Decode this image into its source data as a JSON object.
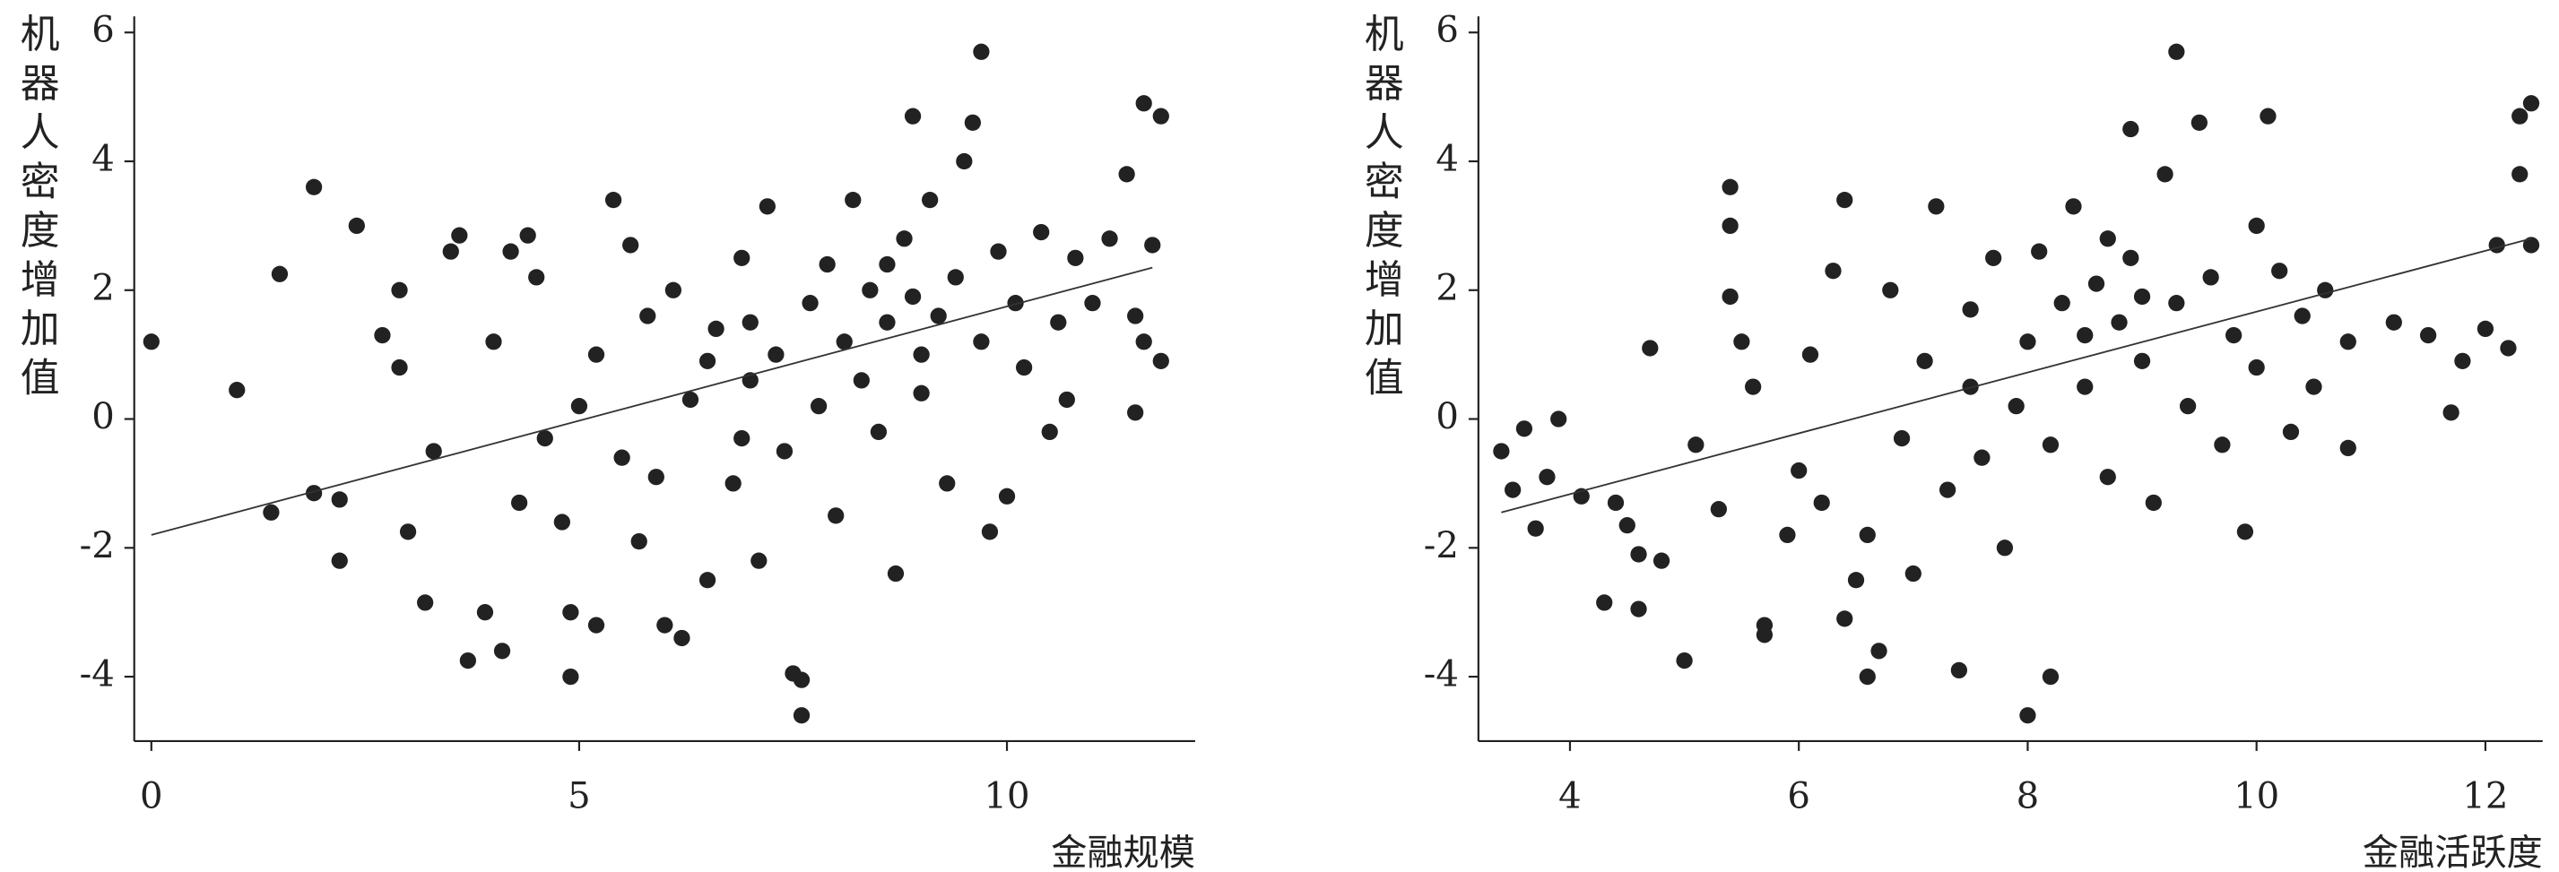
{
  "chart_data": [
    {
      "type": "scatter",
      "color": "#222222",
      "xlabel": "金融规模",
      "ylabel": "机器人密度增加值",
      "xlim": [
        -0.2,
        12.2
      ],
      "ylim": [
        -5,
        6.25
      ],
      "xticks": [
        0,
        5,
        10
      ],
      "yticks": [
        -4,
        -2,
        0,
        2,
        4,
        6
      ],
      "x": [
        0,
        1,
        1.5,
        1.9,
        1.9,
        1.4,
        2.2,
        2.4,
        2.2,
        2.7,
        2.9,
        2.9,
        3.0,
        3.2,
        3.3,
        3.5,
        3.6,
        3.7,
        3.9,
        4.1,
        4.0,
        4.2,
        4.4,
        4.5,
        4.3,
        4.6,
        4.8,
        4.9,
        4.9,
        5.0,
        5.2,
        5.2,
        5.4,
        5.5,
        5.6,
        5.7,
        5.8,
        6.0,
        6.1,
        6.2,
        6.3,
        6.5,
        6.6,
        6.8,
        6.9,
        7.0,
        7.1,
        7.2,
        7.3,
        7.4,
        7.5,
        7.6,
        7.6,
        7.7,
        7.8,
        7.9,
        8.0,
        8.1,
        8.2,
        8.3,
        8.4,
        8.5,
        8.6,
        8.7,
        8.8,
        8.9,
        8.9,
        9.0,
        9.1,
        9.2,
        9.3,
        9.4,
        9.5,
        9.6,
        9.7,
        9.7,
        9.8,
        9.9,
        10.0,
        10.1,
        10.2,
        10.4,
        10.5,
        10.6,
        10.7,
        10.8,
        11.0,
        11.2,
        11.4,
        11.5,
        11.5,
        11.6,
        11.6,
        11.7,
        11.8,
        11.8,
        6.5,
        7.0,
        8.6,
        9.0,
        5.9,
        6.9
      ],
      "y": [
        1.2,
        0.45,
        2.25,
        3.6,
        -1.15,
        -1.45,
        -2.2,
        3.0,
        -1.25,
        1.3,
        2.0,
        0.8,
        -1.75,
        -2.85,
        -0.5,
        2.6,
        2.85,
        -3.75,
        -3.0,
        -3.6,
        1.2,
        2.6,
        2.85,
        2.2,
        -1.3,
        -0.3,
        -1.6,
        -4.0,
        -3.0,
        0.2,
        -3.2,
        1.0,
        3.4,
        -0.6,
        2.7,
        -1.9,
        1.6,
        -3.2,
        2.0,
        -3.4,
        0.3,
        -2.5,
        1.4,
        -1.0,
        2.5,
        0.6,
        -2.2,
        3.3,
        1.0,
        -0.5,
        -3.95,
        -4.6,
        -4.05,
        1.8,
        0.2,
        2.4,
        -1.5,
        1.2,
        3.4,
        0.6,
        2.0,
        -0.2,
        1.5,
        -2.4,
        2.8,
        4.7,
        1.9,
        0.4,
        3.4,
        1.6,
        -1.0,
        2.2,
        4.0,
        4.6,
        5.7,
        1.2,
        -1.75,
        2.6,
        -1.2,
        1.8,
        0.8,
        2.9,
        -0.2,
        1.5,
        0.3,
        2.5,
        1.8,
        2.8,
        3.8,
        1.6,
        0.1,
        4.9,
        1.2,
        2.7,
        4.7,
        0.9,
        0.9,
        1.5,
        2.4,
        1.0,
        -0.9,
        -0.3
      ],
      "trend": {
        "x": [
          0,
          11.7
        ],
        "y": [
          -1.8,
          2.35
        ]
      }
    },
    {
      "type": "scatter",
      "color": "#222222",
      "xlabel": "金融活跃度",
      "ylabel": "机器人密度增加值",
      "xlim": [
        3.2,
        12.5
      ],
      "ylim": [
        -5,
        6.25
      ],
      "xticks": [
        4,
        6,
        8,
        10,
        12
      ],
      "yticks": [
        -4,
        -2,
        0,
        2,
        4,
        6
      ],
      "x": [
        3.4,
        3.5,
        3.6,
        3.7,
        3.8,
        3.9,
        4.1,
        4.3,
        4.4,
        4.5,
        4.6,
        4.6,
        4.7,
        4.8,
        5.0,
        5.1,
        5.3,
        5.4,
        5.4,
        5.4,
        5.5,
        5.6,
        5.7,
        5.7,
        5.9,
        6.0,
        6.1,
        6.2,
        6.3,
        6.4,
        6.4,
        6.5,
        6.6,
        6.7,
        6.8,
        6.9,
        7.0,
        7.1,
        7.2,
        7.3,
        7.4,
        7.5,
        7.6,
        7.7,
        7.8,
        7.9,
        8.0,
        8.0,
        8.1,
        8.2,
        8.2,
        8.3,
        8.4,
        8.5,
        8.6,
        8.7,
        8.8,
        8.9,
        8.9,
        9.0,
        9.1,
        9.2,
        9.3,
        9.3,
        9.4,
        9.5,
        9.6,
        9.7,
        9.8,
        9.9,
        10.0,
        10.0,
        10.1,
        10.2,
        10.3,
        10.4,
        10.5,
        10.6,
        10.8,
        10.8,
        11.2,
        11.5,
        11.7,
        11.8,
        12.0,
        12.1,
        12.2,
        12.3,
        12.3,
        12.4,
        12.4,
        8.5,
        9.0,
        7.5,
        8.7,
        6.6
      ],
      "y": [
        -0.5,
        -1.1,
        -0.15,
        -1.7,
        -0.9,
        0,
        -1.2,
        -2.85,
        -1.3,
        -1.65,
        -2.95,
        -2.1,
        1.1,
        -2.2,
        -3.75,
        -0.4,
        -1.4,
        3.6,
        3.0,
        1.9,
        1.2,
        0.5,
        -3.35,
        -3.2,
        -1.8,
        -0.8,
        1.0,
        -1.3,
        2.3,
        3.4,
        -3.1,
        -2.5,
        -4.0,
        -3.6,
        2.0,
        -0.3,
        -2.4,
        0.9,
        3.3,
        -1.1,
        -3.9,
        1.7,
        -0.6,
        2.5,
        -2.0,
        0.2,
        -4.6,
        1.2,
        2.6,
        -4.0,
        -0.4,
        1.8,
        3.3,
        0.5,
        2.1,
        -0.9,
        1.5,
        4.5,
        2.5,
        0.9,
        -1.3,
        3.8,
        5.7,
        1.8,
        0.2,
        4.6,
        2.2,
        -0.4,
        1.3,
        -1.75,
        3.0,
        0.8,
        4.7,
        2.3,
        -0.2,
        1.6,
        0.5,
        2.0,
        -0.45,
        1.2,
        1.5,
        1.3,
        0.1,
        0.9,
        1.4,
        2.7,
        1.1,
        4.7,
        3.8,
        4.9,
        2.7,
        1.3,
        1.9,
        0.5,
        2.8,
        -1.8
      ],
      "trend": {
        "x": [
          3.4,
          12.4
        ],
        "y": [
          -1.45,
          2.8
        ]
      }
    }
  ]
}
